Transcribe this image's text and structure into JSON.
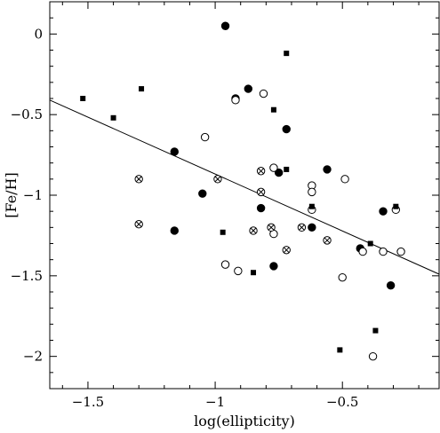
{
  "chart_data": {
    "type": "scatter",
    "xlabel": "log(ellipticity)",
    "ylabel": "[Fe/H]",
    "xlim": [
      -1.65,
      -0.12
    ],
    "ylim": [
      -2.2,
      0.2
    ],
    "grid": false,
    "xticks": [
      {
        "value": -1.5,
        "label": "−1.5"
      },
      {
        "value": -1.0,
        "label": "−1"
      },
      {
        "value": -0.5,
        "label": "−0.5"
      }
    ],
    "yticks": [
      {
        "value": 0,
        "label": "0"
      },
      {
        "value": -0.5,
        "label": "−0.5"
      },
      {
        "value": -1.0,
        "label": "−1"
      },
      {
        "value": -1.5,
        "label": "−1.5"
      },
      {
        "value": -2.0,
        "label": "−2"
      }
    ],
    "fit_line": {
      "x": [
        -1.65,
        -0.12
      ],
      "y": [
        -0.41,
        -1.49
      ]
    },
    "series": [
      {
        "marker": "filled-circle",
        "points": [
          {
            "x": -0.96,
            "y": 0.05
          },
          {
            "x": -0.87,
            "y": -0.34
          },
          {
            "x": -0.92,
            "y": -0.4
          },
          {
            "x": -0.72,
            "y": -0.59
          },
          {
            "x": -1.16,
            "y": -0.73
          },
          {
            "x": -0.56,
            "y": -0.84
          },
          {
            "x": -0.75,
            "y": -0.86
          },
          {
            "x": -1.05,
            "y": -0.99
          },
          {
            "x": -0.82,
            "y": -1.08
          },
          {
            "x": -0.34,
            "y": -1.1
          },
          {
            "x": -1.16,
            "y": -1.22
          },
          {
            "x": -0.62,
            "y": -1.2
          },
          {
            "x": -0.43,
            "y": -1.33
          },
          {
            "x": -0.77,
            "y": -1.44
          },
          {
            "x": -0.31,
            "y": -1.56
          }
        ]
      },
      {
        "marker": "open-circle",
        "points": [
          {
            "x": -0.81,
            "y": -0.37
          },
          {
            "x": -0.92,
            "y": -0.41
          },
          {
            "x": -1.04,
            "y": -0.64
          },
          {
            "x": -0.77,
            "y": -0.83
          },
          {
            "x": -0.49,
            "y": -0.9
          },
          {
            "x": -0.62,
            "y": -0.94
          },
          {
            "x": -0.62,
            "y": -0.98
          },
          {
            "x": -0.62,
            "y": -1.09
          },
          {
            "x": -0.29,
            "y": -1.09
          },
          {
            "x": -0.77,
            "y": -1.24
          },
          {
            "x": -0.27,
            "y": -1.35
          },
          {
            "x": -0.42,
            "y": -1.35
          },
          {
            "x": -0.34,
            "y": -1.35
          },
          {
            "x": -0.96,
            "y": -1.43
          },
          {
            "x": -0.91,
            "y": -1.47
          },
          {
            "x": -0.5,
            "y": -1.51
          },
          {
            "x": -0.38,
            "y": -2.0
          }
        ]
      },
      {
        "marker": "crossed-circle",
        "points": [
          {
            "x": -1.3,
            "y": -0.9
          },
          {
            "x": -0.99,
            "y": -0.9
          },
          {
            "x": -0.82,
            "y": -0.85
          },
          {
            "x": -0.82,
            "y": -0.98
          },
          {
            "x": -1.3,
            "y": -1.18
          },
          {
            "x": -0.85,
            "y": -1.22
          },
          {
            "x": -0.66,
            "y": -1.2
          },
          {
            "x": -0.78,
            "y": -1.2
          },
          {
            "x": -0.56,
            "y": -1.28
          },
          {
            "x": -0.72,
            "y": -1.34
          }
        ]
      },
      {
        "marker": "filled-square",
        "points": [
          {
            "x": -1.52,
            "y": -0.4
          },
          {
            "x": -1.29,
            "y": -0.34
          },
          {
            "x": -1.4,
            "y": -0.52
          },
          {
            "x": -0.72,
            "y": -0.12
          },
          {
            "x": -0.77,
            "y": -0.47
          },
          {
            "x": -0.72,
            "y": -0.84
          },
          {
            "x": -0.62,
            "y": -1.07
          },
          {
            "x": -0.97,
            "y": -1.23
          },
          {
            "x": -0.39,
            "y": -1.3
          },
          {
            "x": -0.29,
            "y": -1.07
          },
          {
            "x": -0.85,
            "y": -1.48
          },
          {
            "x": -0.37,
            "y": -1.84
          },
          {
            "x": -0.51,
            "y": -1.96
          }
        ]
      }
    ]
  }
}
